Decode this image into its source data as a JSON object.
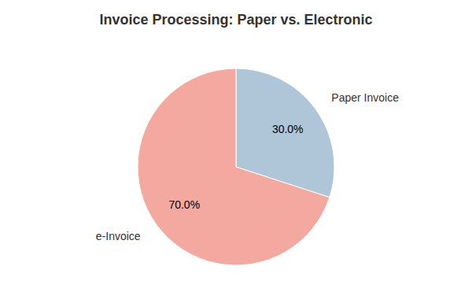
{
  "chart_data": {
    "type": "pie",
    "title": "Invoice Processing: Paper vs. Electronic",
    "categories": [
      "Paper Invoice",
      "e-Invoice"
    ],
    "values": [
      30.0,
      70.0
    ],
    "value_labels": [
      "30.0%",
      "70.0%"
    ],
    "colors": [
      "#aec6d8",
      "#f4a9a0"
    ],
    "data_labels": true
  }
}
